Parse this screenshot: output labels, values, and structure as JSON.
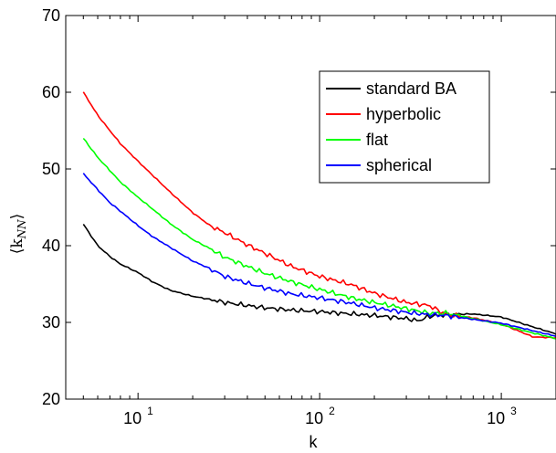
{
  "chart_data": {
    "type": "line",
    "xscale": "log",
    "xlim": [
      4,
      2000
    ],
    "ylim": [
      20,
      70
    ],
    "xlabel": "k",
    "ylabel": "⟨k_NN⟩",
    "ylabel_main": "⟨k",
    "ylabel_sub": "NN",
    "ylabel_close": "⟩",
    "yticks": [
      20,
      30,
      40,
      50,
      60,
      70
    ],
    "ytick_labels": [
      "20",
      "30",
      "40",
      "50",
      "60",
      "70"
    ],
    "xticks": [
      {
        "value": 10,
        "base": "10",
        "exp": "1"
      },
      {
        "value": 100,
        "base": "10",
        "exp": "2"
      },
      {
        "value": 1000,
        "base": "10",
        "exp": "3"
      }
    ],
    "legend_position": "top-right",
    "series": [
      {
        "name": "standard BA",
        "color": "#000000",
        "points": [
          [
            5,
            42.8
          ],
          [
            6,
            40.0
          ],
          [
            7,
            38.6
          ],
          [
            8,
            37.6
          ],
          [
            10,
            36.5
          ],
          [
            12,
            35.3
          ],
          [
            15,
            34.2
          ],
          [
            20,
            33.4
          ],
          [
            25,
            33.0
          ],
          [
            30,
            32.6
          ],
          [
            40,
            32.2
          ],
          [
            50,
            31.9
          ],
          [
            70,
            31.6
          ],
          [
            100,
            31.4
          ],
          [
            150,
            31.1
          ],
          [
            200,
            30.9
          ],
          [
            300,
            30.5
          ],
          [
            350,
            30.2
          ],
          [
            400,
            30.8
          ],
          [
            500,
            31.0
          ],
          [
            700,
            31.1
          ],
          [
            1000,
            30.7
          ],
          [
            1500,
            29.4
          ],
          [
            2000,
            28.5
          ]
        ]
      },
      {
        "name": "hyperbolic",
        "color": "#ff0000",
        "points": [
          [
            5,
            60.0
          ],
          [
            6,
            57.0
          ],
          [
            7,
            55.0
          ],
          [
            8,
            53.3
          ],
          [
            10,
            51.0
          ],
          [
            12,
            49.2
          ],
          [
            15,
            47.0
          ],
          [
            20,
            44.3
          ],
          [
            25,
            42.6
          ],
          [
            30,
            41.7
          ],
          [
            40,
            40.1
          ],
          [
            50,
            39.0
          ],
          [
            70,
            37.3
          ],
          [
            100,
            36.0
          ],
          [
            150,
            34.9
          ],
          [
            200,
            33.8
          ],
          [
            300,
            32.6
          ],
          [
            400,
            32.2
          ],
          [
            500,
            31.0
          ],
          [
            700,
            30.6
          ],
          [
            1000,
            29.8
          ],
          [
            1500,
            28.1
          ],
          [
            2000,
            28.0
          ]
        ]
      },
      {
        "name": "flat",
        "color": "#00ff00",
        "points": [
          [
            5,
            54.0
          ],
          [
            6,
            51.5
          ],
          [
            7,
            49.8
          ],
          [
            8,
            48.3
          ],
          [
            10,
            46.3
          ],
          [
            12,
            44.8
          ],
          [
            15,
            42.9
          ],
          [
            20,
            40.8
          ],
          [
            25,
            39.6
          ],
          [
            30,
            38.5
          ],
          [
            40,
            37.3
          ],
          [
            50,
            36.4
          ],
          [
            70,
            35.3
          ],
          [
            100,
            34.3
          ],
          [
            150,
            33.2
          ],
          [
            200,
            32.6
          ],
          [
            300,
            31.8
          ],
          [
            400,
            31.2
          ],
          [
            500,
            31.2
          ],
          [
            700,
            30.5
          ],
          [
            1000,
            29.7
          ],
          [
            1500,
            28.6
          ],
          [
            2000,
            27.9
          ]
        ]
      },
      {
        "name": "spherical",
        "color": "#0000ff",
        "points": [
          [
            5,
            49.4
          ],
          [
            6,
            47.3
          ],
          [
            7,
            45.6
          ],
          [
            8,
            44.5
          ],
          [
            10,
            42.6
          ],
          [
            12,
            41.2
          ],
          [
            15,
            39.8
          ],
          [
            20,
            38.0
          ],
          [
            25,
            37.0
          ],
          [
            30,
            36.0
          ],
          [
            40,
            35.1
          ],
          [
            50,
            34.5
          ],
          [
            70,
            33.7
          ],
          [
            100,
            33.2
          ],
          [
            150,
            32.5
          ],
          [
            200,
            31.9
          ],
          [
            300,
            31.3
          ],
          [
            400,
            31.0
          ],
          [
            500,
            30.9
          ],
          [
            700,
            30.4
          ],
          [
            1000,
            29.9
          ],
          [
            1500,
            28.9
          ],
          [
            2000,
            28.2
          ]
        ]
      }
    ]
  }
}
